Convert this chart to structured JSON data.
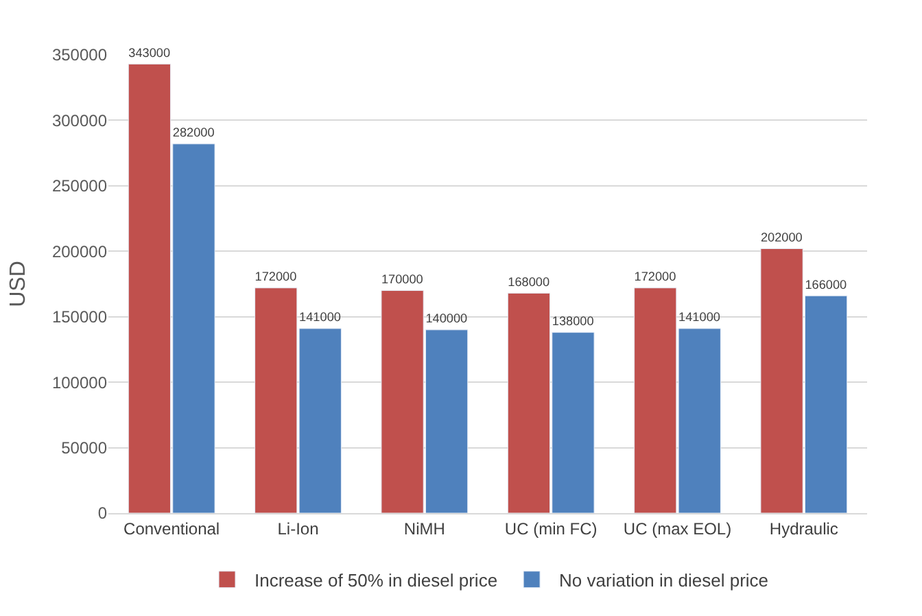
{
  "chart_data": {
    "type": "bar",
    "ylabel": "USD",
    "categories": [
      "Conventional",
      "Li-Ion",
      "NiMH",
      "UC (min FC)",
      "UC (max EOL)",
      "Hydraulic"
    ],
    "series": [
      {
        "name": "Increase of 50% in diesel price",
        "color": "#c0504d",
        "values": [
          343000,
          172000,
          170000,
          168000,
          172000,
          202000
        ]
      },
      {
        "name": "No variation in diesel price",
        "color": "#4f81bd",
        "values": [
          282000,
          141000,
          140000,
          138000,
          141000,
          166000
        ]
      }
    ],
    "ylim": [
      0,
      350000
    ],
    "yticks": [
      0,
      50000,
      100000,
      150000,
      200000,
      250000,
      300000,
      350000
    ],
    "grid": "y",
    "legend": "bottom",
    "data_labels": true
  }
}
